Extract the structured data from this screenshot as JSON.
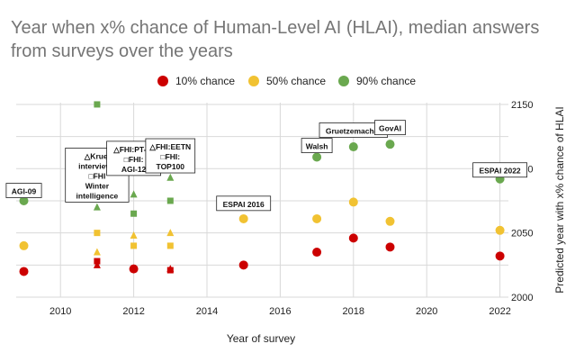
{
  "chart_data": {
    "type": "scatter",
    "title": "Year when x% chance of Human-Level AI (HLAI), median answers from surveys over the years",
    "xlabel": "Year of survey",
    "ylabel": "Predicted year with x% chance of HLAI",
    "xlim": [
      2009,
      2022
    ],
    "ylim": [
      2000,
      2150
    ],
    "x_ticks": [
      "2010",
      "2012",
      "2014",
      "2016",
      "2018",
      "2020",
      "2022"
    ],
    "y_ticks": [
      "2000",
      "2050",
      "2100",
      "2150"
    ],
    "y_axis_position": "right",
    "grid": true,
    "legend_position": "top",
    "series": [
      {
        "name": "10% chance",
        "color": "#cc0000",
        "points": [
          {
            "x": 2009,
            "y": 2020,
            "shape": "circle"
          },
          {
            "x": 2011,
            "y": 2025,
            "shape": "triangle"
          },
          {
            "x": 2011,
            "y": 2028,
            "shape": "square"
          },
          {
            "x": 2012,
            "y": 2022,
            "shape": "triangle"
          },
          {
            "x": 2012,
            "y": 2022,
            "shape": "square"
          },
          {
            "x": 2012,
            "y": 2022,
            "shape": "circle"
          },
          {
            "x": 2013,
            "y": 2022,
            "shape": "triangle"
          },
          {
            "x": 2013,
            "y": 2021,
            "shape": "square"
          },
          {
            "x": 2015,
            "y": 2025,
            "shape": "circle"
          },
          {
            "x": 2017,
            "y": 2035,
            "shape": "circle"
          },
          {
            "x": 2018,
            "y": 2046,
            "shape": "circle"
          },
          {
            "x": 2019,
            "y": 2039,
            "shape": "circle"
          },
          {
            "x": 2022,
            "y": 2032,
            "shape": "circle"
          }
        ]
      },
      {
        "name": "50% chance",
        "color": "#f1c232",
        "points": [
          {
            "x": 2009,
            "y": 2040,
            "shape": "circle"
          },
          {
            "x": 2011,
            "y": 2035,
            "shape": "triangle"
          },
          {
            "x": 2011,
            "y": 2050,
            "shape": "square"
          },
          {
            "x": 2012,
            "y": 2048,
            "shape": "triangle"
          },
          {
            "x": 2012,
            "y": 2040,
            "shape": "square"
          },
          {
            "x": 2013,
            "y": 2050,
            "shape": "triangle"
          },
          {
            "x": 2013,
            "y": 2040,
            "shape": "square"
          },
          {
            "x": 2015,
            "y": 2061,
            "shape": "circle"
          },
          {
            "x": 2017,
            "y": 2061,
            "shape": "circle"
          },
          {
            "x": 2018,
            "y": 2074,
            "shape": "circle"
          },
          {
            "x": 2019,
            "y": 2059,
            "shape": "circle"
          },
          {
            "x": 2022,
            "y": 2052,
            "shape": "circle"
          }
        ]
      },
      {
        "name": "90% chance",
        "color": "#6aa84f",
        "points": [
          {
            "x": 2009,
            "y": 2075,
            "shape": "circle"
          },
          {
            "x": 2011,
            "y": 2070,
            "shape": "triangle"
          },
          {
            "x": 2011,
            "y": 2150,
            "shape": "square"
          },
          {
            "x": 2012,
            "y": 2080,
            "shape": "triangle"
          },
          {
            "x": 2012,
            "y": 2065,
            "shape": "square"
          },
          {
            "x": 2013,
            "y": 2093,
            "shape": "triangle"
          },
          {
            "x": 2013,
            "y": 2075,
            "shape": "square"
          },
          {
            "x": 2017,
            "y": 2109,
            "shape": "circle"
          },
          {
            "x": 2018,
            "y": 2117,
            "shape": "circle"
          },
          {
            "x": 2019,
            "y": 2119,
            "shape": "circle"
          },
          {
            "x": 2022,
            "y": 2092,
            "shape": "circle"
          }
        ]
      }
    ],
    "annotations": [
      {
        "name": "agi-09",
        "lines": [
          "AGI-09"
        ],
        "x": 2009,
        "y": 2083
      },
      {
        "name": "kruel-fhi",
        "lines": [
          "△Kruel",
          "interviews",
          "□FHI",
          "Winter",
          "intelligence"
        ],
        "x": 2011,
        "y": 2095
      },
      {
        "name": "fhi-pt-ai",
        "lines": [
          "△FHI:PT-AI",
          "□FHI:",
          "AGI-12"
        ],
        "x": 2012,
        "y": 2108
      },
      {
        "name": "fhi-eetn",
        "lines": [
          "△FHI:EETN",
          "□FHI:",
          "TOP100"
        ],
        "x": 2013,
        "y": 2110
      },
      {
        "name": "espai-2016",
        "lines": [
          "ESPAI 2016"
        ],
        "x": 2015,
        "y": 2073
      },
      {
        "name": "walsh",
        "lines": [
          "Walsh"
        ],
        "x": 2017,
        "y": 2118
      },
      {
        "name": "gruetzemacher",
        "lines": [
          "Gruetzemacher"
        ],
        "x": 2018,
        "y": 2130
      },
      {
        "name": "govai",
        "lines": [
          "GovAI"
        ],
        "x": 2019,
        "y": 2132
      },
      {
        "name": "espai-2022",
        "lines": [
          "ESPAI 2022"
        ],
        "x": 2022,
        "y": 2099
      }
    ]
  }
}
